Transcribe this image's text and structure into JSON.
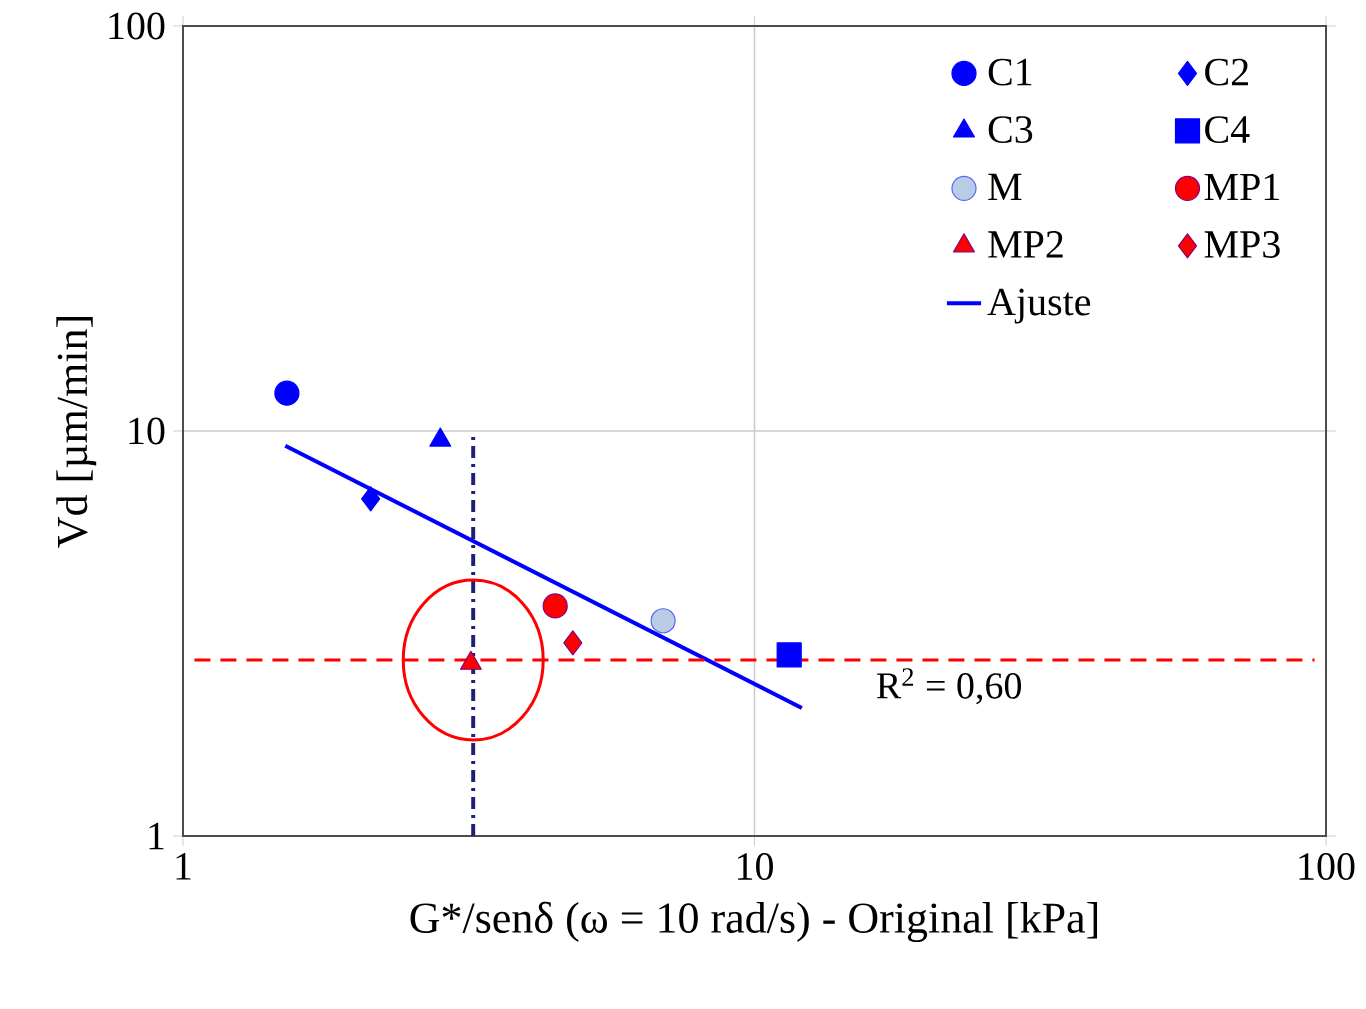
{
  "chart_data": {
    "type": "scatter",
    "xlabel": "G*/senδ (ω = 10 rad/s) - Original [kPa]",
    "ylabel": "Vd [µm/min]",
    "log": "xy",
    "grid": true,
    "legend": "top right",
    "xlim": [
      1,
      100
    ],
    "xticks": [
      1,
      10,
      100
    ],
    "ylim": [
      1,
      100
    ],
    "yticks": [
      1,
      10,
      100
    ],
    "series": [
      {
        "name": "C1",
        "color": "#0000ff",
        "marker": "circle",
        "x": [
          1.52
        ],
        "values": [
          12.4
        ]
      },
      {
        "name": "C2",
        "color": "#0000ff",
        "marker": "diamond",
        "x": [
          2.13
        ],
        "values": [
          6.8
        ]
      },
      {
        "name": "C3",
        "color": "#0000ff",
        "marker": "triangle",
        "x": [
          2.82
        ],
        "values": [
          9.5
        ]
      },
      {
        "name": "C4",
        "color": "#0000ff",
        "marker": "square",
        "x": [
          11.5
        ],
        "values": [
          2.8
        ]
      },
      {
        "name": "M",
        "color": "#b8cce4",
        "marker": "circle",
        "x": [
          6.92
        ],
        "values": [
          3.4
        ]
      },
      {
        "name": "MP1",
        "color": "#ff0000",
        "marker": "circle",
        "x": [
          4.48
        ],
        "values": [
          3.7
        ]
      },
      {
        "name": "MP2",
        "color": "#ff0000",
        "marker": "triangle",
        "x": [
          3.19
        ],
        "values": [
          2.67
        ]
      },
      {
        "name": "MP3",
        "color": "#ff0000",
        "marker": "diamond",
        "x": [
          4.81
        ],
        "values": [
          3.0
        ]
      },
      {
        "name": "Ajuste",
        "type": "line",
        "color": "#0000ff",
        "marker": "none",
        "line_style": "solid",
        "x": [
          1.51,
          12.1
        ],
        "values": [
          9.2,
          2.07
        ]
      },
      {
        "type": "line",
        "color": "#1f1f7a",
        "marker": "none",
        "line_style": "dashdot",
        "x": [
          3.22,
          3.22
        ],
        "values": [
          1,
          10
        ]
      }
    ],
    "ref_lines": [
      {
        "axis": "y",
        "value": 2.72,
        "color": "#ff0000",
        "line_style": "dashed"
      }
    ],
    "annotations": [
      "R$^{2}$ = 0,60"
    ]
  }
}
